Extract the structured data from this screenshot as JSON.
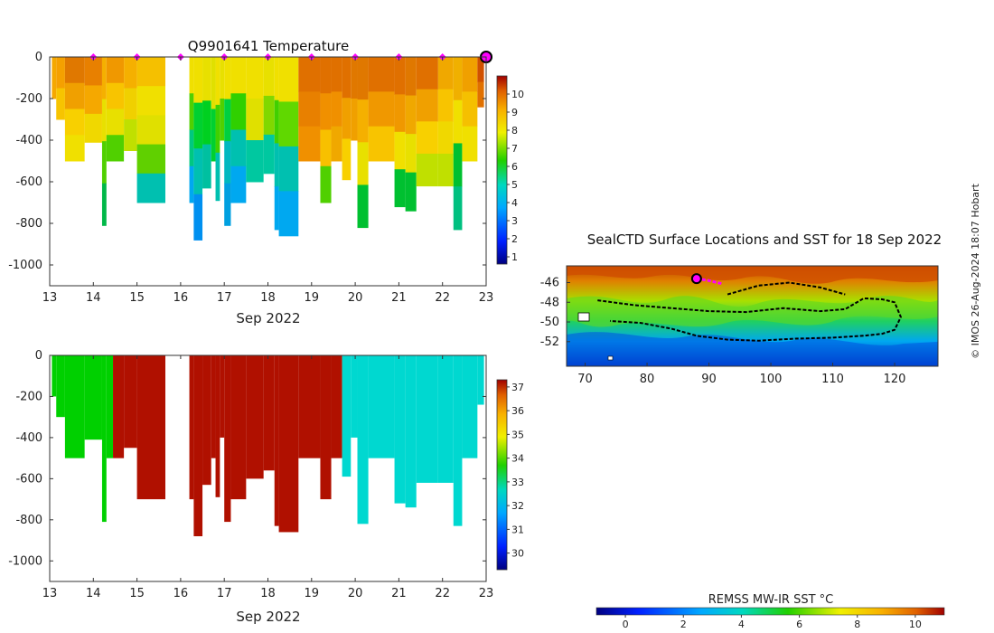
{
  "chart_data": [
    {
      "type": "heatmap",
      "title": "Q9901641  Temperature",
      "xlabel": "Sep 2022",
      "x_ticks": [
        "13",
        "14",
        "15",
        "16",
        "17",
        "18",
        "19",
        "20",
        "21",
        "22",
        "23"
      ],
      "xlim": [
        13,
        23
      ],
      "y_ticks": [
        "0",
        "-200",
        "-400",
        "-600",
        "-800",
        "-1000"
      ],
      "ylim": [
        -1100,
        0
      ],
      "colorbar": {
        "range": [
          0.6,
          11
        ],
        "ticks": [
          "1",
          "2",
          "3",
          "4",
          "5",
          "6",
          "7",
          "8",
          "9",
          "10"
        ]
      },
      "surface_markers_day": [
        14,
        15,
        16,
        17,
        18,
        19,
        20,
        21,
        22
      ],
      "latest_marker_day": 23,
      "profiles": [
        {
          "x0": 13.05,
          "x1": 13.15,
          "depth": 200,
          "colors": [
            "#f5a800"
          ]
        },
        {
          "x0": 13.15,
          "x1": 13.35,
          "depth": 300,
          "colors": [
            "#f5a000",
            "#f7c400"
          ]
        },
        {
          "x0": 13.35,
          "x1": 13.8,
          "depth": 500,
          "colors": [
            "#e07800",
            "#f0a000",
            "#f8d000",
            "#f0e000"
          ]
        },
        {
          "x0": 13.8,
          "x1": 14.2,
          "depth": 410,
          "colors": [
            "#e88000",
            "#f5a800",
            "#f0d800"
          ]
        },
        {
          "x0": 14.2,
          "x1": 14.3,
          "depth": 810,
          "colors": [
            "#f5b000",
            "#e8e000",
            "#50d000",
            "#00b848"
          ]
        },
        {
          "x0": 14.3,
          "x1": 14.7,
          "depth": 500,
          "colors": [
            "#f09800",
            "#f8c400",
            "#e8e000",
            "#50d000"
          ]
        },
        {
          "x0": 14.7,
          "x1": 15.0,
          "depth": 450,
          "colors": [
            "#f5b000",
            "#f0d000",
            "#c0e000"
          ]
        },
        {
          "x0": 15.0,
          "x1": 15.65,
          "depth": 700,
          "colors": [
            "#f5c000",
            "#f0e000",
            "#e0e000",
            "#60d000",
            "#00c0b0"
          ]
        },
        {
          "x0": 16.2,
          "x1": 16.3,
          "depth": 700,
          "colors": [
            "#f0e000",
            "#50d000",
            "#00c880",
            "#00a8f0"
          ]
        },
        {
          "x0": 16.3,
          "x1": 16.5,
          "depth": 880,
          "colors": [
            "#f0e000",
            "#00d030",
            "#00c0b0",
            "#0090f0"
          ]
        },
        {
          "x0": 16.5,
          "x1": 16.7,
          "depth": 630,
          "colors": [
            "#e8e000",
            "#00d020",
            "#00c0a0"
          ]
        },
        {
          "x0": 16.7,
          "x1": 16.8,
          "depth": 500,
          "colors": [
            "#e0e000",
            "#00d030"
          ]
        },
        {
          "x0": 16.8,
          "x1": 16.9,
          "depth": 690,
          "colors": [
            "#f0e000",
            "#40d000",
            "#00c0b0"
          ]
        },
        {
          "x0": 16.9,
          "x1": 17.0,
          "depth": 400,
          "colors": [
            "#e8e000",
            "#50d000"
          ]
        },
        {
          "x0": 17.0,
          "x1": 17.15,
          "depth": 810,
          "colors": [
            "#f0e000",
            "#00d040",
            "#00b8c0",
            "#00a0e0"
          ]
        },
        {
          "x0": 17.15,
          "x1": 17.5,
          "depth": 700,
          "colors": [
            "#f0e000",
            "#30d000",
            "#00c0b0",
            "#00a8f0"
          ]
        },
        {
          "x0": 17.5,
          "x1": 17.9,
          "depth": 600,
          "colors": [
            "#f0e000",
            "#e0e000",
            "#00c8a0"
          ]
        },
        {
          "x0": 17.9,
          "x1": 18.15,
          "depth": 560,
          "colors": [
            "#e8e000",
            "#80d800",
            "#00c8a0"
          ]
        },
        {
          "x0": 18.15,
          "x1": 18.25,
          "depth": 830,
          "colors": [
            "#f0e000",
            "#40d000",
            "#00c0b0",
            "#00a8f0"
          ]
        },
        {
          "x0": 18.25,
          "x1": 18.7,
          "depth": 860,
          "colors": [
            "#f0e000",
            "#60d800",
            "#00c0b0",
            "#00a8f0"
          ]
        },
        {
          "x0": 18.7,
          "x1": 19.2,
          "depth": 500,
          "colors": [
            "#e07000",
            "#e88000",
            "#f09000"
          ]
        },
        {
          "x0": 19.2,
          "x1": 19.45,
          "depth": 700,
          "colors": [
            "#e07000",
            "#f09000",
            "#f8c000",
            "#50d000"
          ]
        },
        {
          "x0": 19.45,
          "x1": 19.7,
          "depth": 500,
          "colors": [
            "#e07000",
            "#f09000",
            "#f0a800"
          ]
        },
        {
          "x0": 19.7,
          "x1": 19.9,
          "depth": 590,
          "colors": [
            "#e07000",
            "#f0a000",
            "#f8d000"
          ]
        },
        {
          "x0": 19.9,
          "x1": 20.05,
          "depth": 400,
          "colors": [
            "#e07800",
            "#f0a000"
          ]
        },
        {
          "x0": 20.05,
          "x1": 20.3,
          "depth": 820,
          "colors": [
            "#e07800",
            "#f5b000",
            "#e8e000",
            "#00c030"
          ]
        },
        {
          "x0": 20.3,
          "x1": 20.9,
          "depth": 500,
          "colors": [
            "#e07000",
            "#f09800",
            "#f8c400"
          ]
        },
        {
          "x0": 20.9,
          "x1": 21.15,
          "depth": 720,
          "colors": [
            "#e07000",
            "#f09800",
            "#f0e000",
            "#00c030"
          ]
        },
        {
          "x0": 21.15,
          "x1": 21.4,
          "depth": 740,
          "colors": [
            "#e07800",
            "#f0a800",
            "#e8e000",
            "#00c030"
          ]
        },
        {
          "x0": 21.4,
          "x1": 21.9,
          "depth": 620,
          "colors": [
            "#e07000",
            "#f0a000",
            "#f8d000",
            "#c0e000"
          ]
        },
        {
          "x0": 21.9,
          "x1": 22.25,
          "depth": 620,
          "colors": [
            "#f0a800",
            "#f8c400",
            "#f0d800",
            "#c0e000"
          ]
        },
        {
          "x0": 22.25,
          "x1": 22.45,
          "depth": 830,
          "colors": [
            "#f0b000",
            "#f0e000",
            "#00c030",
            "#00c080"
          ]
        },
        {
          "x0": 22.45,
          "x1": 22.8,
          "depth": 500,
          "colors": [
            "#f0a000",
            "#f5c000",
            "#f0e000"
          ]
        },
        {
          "x0": 22.8,
          "x1": 22.95,
          "depth": 240,
          "colors": [
            "#d05000",
            "#e07000"
          ]
        }
      ]
    },
    {
      "type": "heatmap",
      "title": "",
      "xlabel": "Sep 2022",
      "x_ticks": [
        "13",
        "14",
        "15",
        "16",
        "17",
        "18",
        "19",
        "20",
        "21",
        "22",
        "23"
      ],
      "xlim": [
        13,
        23
      ],
      "y_ticks": [
        "0",
        "-200",
        "-400",
        "-600",
        "-800",
        "-1000"
      ],
      "ylim": [
        -1100,
        0
      ],
      "colorbar": {
        "range": [
          29.3,
          37.3
        ],
        "ticks": [
          "30",
          "31",
          "32",
          "33",
          "34",
          "35",
          "36",
          "37"
        ]
      },
      "profiles": [
        {
          "x0": 13.05,
          "x1": 13.15,
          "depth": 200,
          "color": "#00d000"
        },
        {
          "x0": 13.15,
          "x1": 13.35,
          "depth": 300,
          "color": "#00d000"
        },
        {
          "x0": 13.35,
          "x1": 13.8,
          "depth": 500,
          "color": "#00d000"
        },
        {
          "x0": 13.8,
          "x1": 14.2,
          "depth": 410,
          "color": "#00d000"
        },
        {
          "x0": 14.2,
          "x1": 14.3,
          "depth": 810,
          "color": "#00d000"
        },
        {
          "x0": 14.3,
          "x1": 14.45,
          "depth": 500,
          "color": "#00d000"
        },
        {
          "x0": 14.45,
          "x1": 14.7,
          "depth": 500,
          "color": "#b01000"
        },
        {
          "x0": 14.7,
          "x1": 15.0,
          "depth": 450,
          "color": "#b01000"
        },
        {
          "x0": 15.0,
          "x1": 15.65,
          "depth": 700,
          "color": "#b01000"
        },
        {
          "x0": 16.2,
          "x1": 16.3,
          "depth": 700,
          "color": "#b01000"
        },
        {
          "x0": 16.3,
          "x1": 16.5,
          "depth": 880,
          "color": "#b01000"
        },
        {
          "x0": 16.5,
          "x1": 16.7,
          "depth": 630,
          "color": "#b01000"
        },
        {
          "x0": 16.7,
          "x1": 16.8,
          "depth": 500,
          "color": "#b01000"
        },
        {
          "x0": 16.8,
          "x1": 16.9,
          "depth": 690,
          "color": "#b01000"
        },
        {
          "x0": 16.9,
          "x1": 17.0,
          "depth": 400,
          "color": "#b01000"
        },
        {
          "x0": 17.0,
          "x1": 17.15,
          "depth": 810,
          "color": "#b01000"
        },
        {
          "x0": 17.15,
          "x1": 17.5,
          "depth": 700,
          "color": "#b01000"
        },
        {
          "x0": 17.5,
          "x1": 17.9,
          "depth": 600,
          "color": "#b01000"
        },
        {
          "x0": 17.9,
          "x1": 18.15,
          "depth": 560,
          "color": "#b01000"
        },
        {
          "x0": 18.15,
          "x1": 18.25,
          "depth": 830,
          "color": "#b01000"
        },
        {
          "x0": 18.25,
          "x1": 18.7,
          "depth": 860,
          "color": "#b01000"
        },
        {
          "x0": 18.7,
          "x1": 19.2,
          "depth": 500,
          "color": "#b01000"
        },
        {
          "x0": 19.2,
          "x1": 19.45,
          "depth": 700,
          "color": "#b01000"
        },
        {
          "x0": 19.45,
          "x1": 19.7,
          "depth": 500,
          "color": "#b01000"
        },
        {
          "x0": 19.7,
          "x1": 19.9,
          "depth": 590,
          "color": "#00d8d0"
        },
        {
          "x0": 19.9,
          "x1": 20.05,
          "depth": 400,
          "color": "#00d8d0"
        },
        {
          "x0": 20.05,
          "x1": 20.3,
          "depth": 820,
          "color": "#00d8d0"
        },
        {
          "x0": 20.3,
          "x1": 20.9,
          "depth": 500,
          "color": "#00d8d0"
        },
        {
          "x0": 20.9,
          "x1": 21.15,
          "depth": 720,
          "color": "#00d8d0"
        },
        {
          "x0": 21.15,
          "x1": 21.4,
          "depth": 740,
          "color": "#00d8d0"
        },
        {
          "x0": 21.4,
          "x1": 21.9,
          "depth": 620,
          "color": "#00d8d0"
        },
        {
          "x0": 21.9,
          "x1": 22.25,
          "depth": 620,
          "color": "#00d8d0"
        },
        {
          "x0": 22.25,
          "x1": 22.45,
          "depth": 830,
          "color": "#00d8d0"
        },
        {
          "x0": 22.45,
          "x1": 22.8,
          "depth": 500,
          "color": "#00d8d0"
        },
        {
          "x0": 22.8,
          "x1": 22.95,
          "depth": 240,
          "color": "#00d8d0"
        }
      ]
    },
    {
      "type": "heatmap",
      "title": "SealCTD Surface Locations and SST for 18 Sep 2022",
      "x_ticks": [
        "70",
        "80",
        "90",
        "100",
        "110",
        "120"
      ],
      "xlim": [
        67,
        127
      ],
      "y_ticks": [
        "-46",
        "-48",
        "-50",
        "-52"
      ],
      "ylim": [
        -54.5,
        -44.3
      ],
      "current_position": [
        88,
        -45.6
      ],
      "track": [
        [
          72,
          -47.8
        ],
        [
          78,
          -48.3
        ],
        [
          84,
          -48.6
        ],
        [
          90,
          -48.9
        ],
        [
          96,
          -49.0
        ],
        [
          102,
          -48.6
        ],
        [
          108,
          -48.9
        ],
        [
          112,
          -48.7
        ],
        [
          115,
          -47.6
        ],
        [
          118,
          -47.7
        ],
        [
          120,
          -48.0
        ],
        [
          121,
          -49.5
        ],
        [
          120,
          -50.8
        ],
        [
          118,
          -51.2
        ],
        [
          115,
          -51.4
        ],
        [
          110,
          -51.6
        ],
        [
          104,
          -51.7
        ],
        [
          98,
          -51.9
        ],
        [
          93,
          -51.8
        ],
        [
          88,
          -51.4
        ],
        [
          84,
          -50.7
        ],
        [
          79,
          -50.1
        ],
        [
          74,
          -49.9
        ]
      ],
      "track_eastern": [
        [
          93,
          -47.2
        ],
        [
          98,
          -46.3
        ],
        [
          103,
          -46.0
        ],
        [
          108,
          -46.5
        ],
        [
          112,
          -47.2
        ]
      ],
      "recent_track": [
        [
          88,
          -45.6
        ],
        [
          90,
          -45.8
        ],
        [
          92,
          -46.1
        ]
      ],
      "colorbar": {
        "label": "REMSS MW-IR SST °C",
        "range": [
          -1,
          11
        ],
        "ticks": [
          "0",
          "2",
          "4",
          "6",
          "8",
          "10"
        ]
      }
    }
  ],
  "watermark": "© IMOS 26-Aug-2024 18:07 Hobart"
}
